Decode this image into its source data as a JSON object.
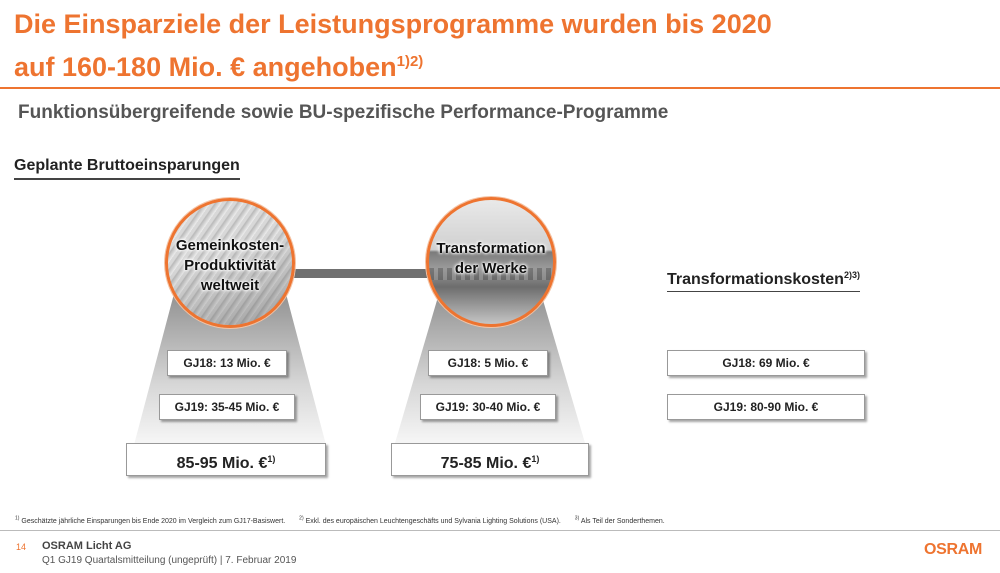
{
  "header": {
    "title_line1": "Die Einsparziele der Leistungsprogramme wurden bis 2020",
    "title_line2": "auf 160-180 Mio. € angehoben",
    "title_sup": "1)2)",
    "subtitle": "Funktionsübergreifende sowie BU-spezifische Performance-Programme"
  },
  "section_title": "Geplante Bruttoeinsparungen",
  "programs": [
    {
      "label_line1": "Gemeinkosten-",
      "label_line2": "Produktivität",
      "label_line3": "weltweit",
      "gj18": "GJ18: 13 Mio. €",
      "gj19": "GJ19: 35-45 Mio. €",
      "total": "85-95 Mio. €",
      "total_sup": "1)"
    },
    {
      "label_line1": "Transformation",
      "label_line2": "der Werke",
      "gj18": "GJ18: 5 Mio. €",
      "gj19": "GJ19: 30-40 Mio. €",
      "total": "75-85 Mio. €",
      "total_sup": "1)"
    }
  ],
  "transformation_costs": {
    "title": "Transformationskosten",
    "title_sup": "2)3)",
    "gj18": "GJ18: 69 Mio. €",
    "gj19": "GJ19: 80-90 Mio. €"
  },
  "footnotes": [
    {
      "mark": "1)",
      "text": "Geschätzte jährliche Einsparungen bis Ende 2020 im Vergleich zum GJ17-Basiswert."
    },
    {
      "mark": "2)",
      "text": "Exkl. des europäischen Leuchtengeschäfts und Sylvania Lighting Solutions (USA)."
    },
    {
      "mark": "3)",
      "text": "Als Teil der Sonderthemen."
    }
  ],
  "footer": {
    "page_number": "14",
    "company": "OSRAM Licht AG",
    "document": "Q1 GJ19 Quartalsmitteilung (ungeprüft) | 7. Februar 2019",
    "logo_text": "OSRAM"
  },
  "colors": {
    "accent": "#ee7430",
    "beam_gray": "#8a8a8a",
    "connector": "#707070"
  }
}
